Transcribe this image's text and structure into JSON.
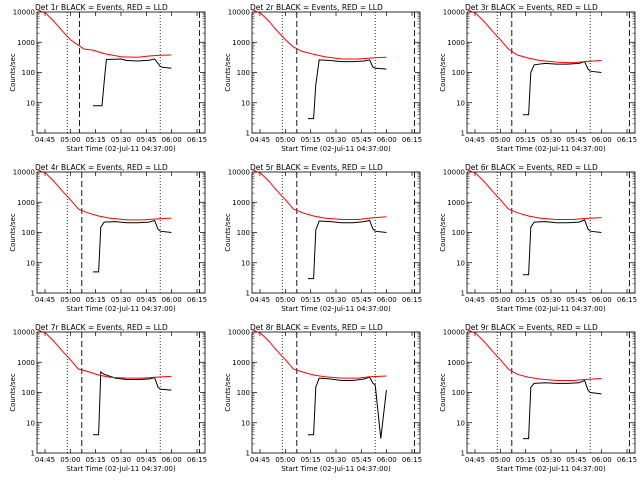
{
  "figure": {
    "background": "#ffffff",
    "layout": "3x3 grid"
  },
  "chart_data": [
    {
      "type": "line",
      "title": "Det 1r BLACK = Events, RED = LLD",
      "xlabel": "Start Time (02-Jul-11 04:37:00)",
      "ylabel": "Counts/sec",
      "xticks": [
        "04:45",
        "05:00",
        "05:15",
        "05:30",
        "05:45",
        "06:00",
        "06:15"
      ],
      "yticks": [
        "1",
        "10",
        "100",
        "1000",
        "10000"
      ],
      "yscale": "log",
      "ylim": [
        1,
        10000
      ],
      "series": [
        {
          "color": "#000000",
          "x": [
            0.5,
            0.58,
            0.6,
            0.62,
            0.75,
            0.8,
            0.9,
            1.0,
            1.05,
            1.08,
            1.1,
            1.12,
            1.15,
            1.2
          ],
          "y": [
            8,
            8,
            50,
            270,
            280,
            250,
            240,
            255,
            280,
            200,
            160,
            150,
            145,
            140
          ]
        },
        {
          "color": "#ff0000",
          "x": [
            0,
            0.08,
            0.15,
            0.22,
            0.3,
            0.37,
            0.42,
            0.5,
            0.6,
            0.75,
            0.9,
            1.0,
            1.1,
            1.2
          ],
          "y": [
            12000,
            9000,
            5000,
            2500,
            1200,
            800,
            600,
            550,
            420,
            330,
            320,
            350,
            370,
            380
          ]
        }
      ],
      "dotted_lines": [
        0.27,
        1.1
      ],
      "dashed_lines": [
        0.38,
        1.45
      ],
      "x_range": [
        0,
        1.5
      ]
    },
    {
      "type": "line",
      "title": "Det 2r BLACK = Events, RED = LLD",
      "xlabel": "Start Time (02-Jul-11 04:37:00)",
      "ylabel": "Counts/sec",
      "xticks": [
        "04:45",
        "05:00",
        "05:15",
        "05:30",
        "05:45",
        "06:00",
        "06:15"
      ],
      "yticks": [
        "1",
        "10",
        "100",
        "1000",
        "10000"
      ],
      "yscale": "log",
      "ylim": [
        1,
        10000
      ],
      "series": [
        {
          "color": "#000000",
          "x": [
            0.5,
            0.55,
            0.57,
            0.6,
            0.7,
            0.8,
            0.9,
            1.0,
            1.05,
            1.08,
            1.1,
            1.2
          ],
          "y": [
            3,
            3,
            40,
            260,
            250,
            230,
            230,
            240,
            260,
            150,
            140,
            130
          ]
        },
        {
          "color": "#ff0000",
          "x": [
            0,
            0.08,
            0.15,
            0.22,
            0.3,
            0.37,
            0.45,
            0.55,
            0.65,
            0.8,
            0.95,
            1.05,
            1.2
          ],
          "y": [
            12000,
            9000,
            5000,
            2500,
            1200,
            700,
            500,
            400,
            330,
            280,
            280,
            300,
            320
          ]
        }
      ],
      "dotted_lines": [
        0.27,
        1.1
      ],
      "dashed_lines": [
        0.4,
        1.45
      ],
      "x_range": [
        0,
        1.5
      ]
    },
    {
      "type": "line",
      "title": "Det 3r BLACK = Events, RED = LLD",
      "xlabel": "Start Time (02-Jul-11 04:37:00)",
      "ylabel": "Counts/sec",
      "xticks": [
        "04:45",
        "05:00",
        "05:15",
        "05:30",
        "05:45",
        "06:00",
        "06:15"
      ],
      "yticks": [
        "1",
        "10",
        "100",
        "1000",
        "10000"
      ],
      "yscale": "log",
      "ylim": [
        1,
        10000
      ],
      "series": [
        {
          "color": "#000000",
          "x": [
            0.5,
            0.55,
            0.57,
            0.6,
            0.7,
            0.8,
            0.9,
            1.0,
            1.05,
            1.08,
            1.1,
            1.2
          ],
          "y": [
            4,
            4,
            100,
            180,
            200,
            190,
            190,
            200,
            230,
            130,
            110,
            100
          ]
        },
        {
          "color": "#ff0000",
          "x": [
            0,
            0.08,
            0.15,
            0.22,
            0.3,
            0.37,
            0.45,
            0.55,
            0.65,
            0.8,
            0.95,
            1.05,
            1.2
          ],
          "y": [
            12000,
            9000,
            5000,
            2500,
            1200,
            600,
            380,
            300,
            250,
            220,
            210,
            230,
            250
          ]
        }
      ],
      "dotted_lines": [
        0.27,
        1.1
      ],
      "dashed_lines": [
        0.4,
        1.45
      ],
      "x_range": [
        0,
        1.5
      ]
    },
    {
      "type": "line",
      "title": "Det 4r BLACK = Events, RED = LLD",
      "xlabel": "Start Time (02-Jul-11 04:37:00)",
      "ylabel": "Counts/sec",
      "xticks": [
        "04:45",
        "05:00",
        "05:15",
        "05:30",
        "05:45",
        "06:00",
        "06:15"
      ],
      "yticks": [
        "1",
        "10",
        "100",
        "1000",
        "10000"
      ],
      "yscale": "log",
      "ylim": [
        1,
        10000
      ],
      "series": [
        {
          "color": "#000000",
          "x": [
            0.5,
            0.55,
            0.57,
            0.6,
            0.7,
            0.8,
            0.9,
            1.0,
            1.05,
            1.08,
            1.1,
            1.2
          ],
          "y": [
            5,
            5,
            150,
            220,
            230,
            210,
            210,
            220,
            250,
            130,
            110,
            100
          ]
        },
        {
          "color": "#ff0000",
          "x": [
            0,
            0.08,
            0.15,
            0.22,
            0.3,
            0.37,
            0.45,
            0.55,
            0.65,
            0.8,
            0.95,
            1.05,
            1.2
          ],
          "y": [
            12000,
            9000,
            5000,
            2500,
            1200,
            600,
            450,
            350,
            300,
            260,
            260,
            280,
            300
          ]
        }
      ],
      "dotted_lines": [
        0.27,
        1.1
      ],
      "dashed_lines": [
        0.4,
        1.45
      ],
      "x_range": [
        0,
        1.5
      ]
    },
    {
      "type": "line",
      "title": "Det 5r BLACK = Events, RED = LLD",
      "xlabel": "Start Time (02-Jul-11 04:37:00)",
      "ylabel": "Counts/sec",
      "xticks": [
        "04:45",
        "05:00",
        "05:15",
        "05:30",
        "05:45",
        "06:00",
        "06:15"
      ],
      "yticks": [
        "1",
        "10",
        "100",
        "1000",
        "10000"
      ],
      "yscale": "log",
      "ylim": [
        1,
        10000
      ],
      "series": [
        {
          "color": "#000000",
          "x": [
            0.5,
            0.55,
            0.57,
            0.6,
            0.7,
            0.8,
            0.9,
            1.0,
            1.05,
            1.08,
            1.1,
            1.2
          ],
          "y": [
            3,
            3,
            120,
            240,
            230,
            210,
            210,
            230,
            250,
            130,
            110,
            100
          ]
        },
        {
          "color": "#ff0000",
          "x": [
            0,
            0.08,
            0.15,
            0.22,
            0.3,
            0.37,
            0.45,
            0.55,
            0.65,
            0.8,
            0.95,
            1.05,
            1.2
          ],
          "y": [
            12000,
            9000,
            5000,
            2500,
            1200,
            600,
            450,
            350,
            300,
            270,
            270,
            300,
            330
          ]
        }
      ],
      "dotted_lines": [
        0.27,
        1.1
      ],
      "dashed_lines": [
        0.4,
        1.45
      ],
      "x_range": [
        0,
        1.5
      ]
    },
    {
      "type": "line",
      "title": "Det 6r BLACK = Events, RED = LLD",
      "xlabel": "Start Time (02-Jul-11 04:37:00)",
      "ylabel": "Counts/sec",
      "xticks": [
        "04:45",
        "05:00",
        "05:15",
        "05:30",
        "05:45",
        "06:00",
        "06:15"
      ],
      "yticks": [
        "1",
        "10",
        "100",
        "1000",
        "10000"
      ],
      "yscale": "log",
      "ylim": [
        1,
        10000
      ],
      "series": [
        {
          "color": "#000000",
          "x": [
            0.5,
            0.55,
            0.57,
            0.6,
            0.7,
            0.8,
            0.9,
            1.0,
            1.05,
            1.08,
            1.1,
            1.2
          ],
          "y": [
            4,
            4,
            150,
            220,
            230,
            210,
            210,
            220,
            260,
            130,
            110,
            100
          ]
        },
        {
          "color": "#ff0000",
          "x": [
            0,
            0.08,
            0.15,
            0.22,
            0.3,
            0.37,
            0.45,
            0.55,
            0.65,
            0.8,
            0.95,
            1.05,
            1.2
          ],
          "y": [
            12000,
            9000,
            5000,
            2500,
            1200,
            600,
            450,
            350,
            300,
            270,
            270,
            290,
            310
          ]
        }
      ],
      "dotted_lines": [
        0.27,
        1.1
      ],
      "dashed_lines": [
        0.4,
        1.45
      ],
      "x_range": [
        0,
        1.5
      ]
    },
    {
      "type": "line",
      "title": "Det 7r BLACK = Events, RED = LLD",
      "xlabel": "Start Time (02-Jul-11 04:37:00)",
      "ylabel": "Counts/sec",
      "xticks": [
        "04:45",
        "05:00",
        "05:15",
        "05:30",
        "05:45",
        "06:00",
        "06:15"
      ],
      "yticks": [
        "1",
        "10",
        "100",
        "1000",
        "10000"
      ],
      "yscale": "log",
      "ylim": [
        1,
        10000
      ],
      "series": [
        {
          "color": "#000000",
          "x": [
            0.5,
            0.55,
            0.57,
            0.6,
            0.7,
            0.8,
            0.9,
            1.0,
            1.05,
            1.08,
            1.1,
            1.2
          ],
          "y": [
            4,
            4,
            480,
            400,
            300,
            270,
            270,
            280,
            310,
            150,
            130,
            120
          ]
        },
        {
          "color": "#ff0000",
          "x": [
            0,
            0.08,
            0.15,
            0.22,
            0.3,
            0.37,
            0.45,
            0.55,
            0.65,
            0.8,
            0.95,
            1.05,
            1.2
          ],
          "y": [
            12000,
            9000,
            5000,
            2500,
            1200,
            600,
            500,
            380,
            320,
            300,
            300,
            320,
            340
          ]
        }
      ],
      "dotted_lines": [
        0.27,
        1.1
      ],
      "dashed_lines": [
        0.4,
        1.45
      ],
      "x_range": [
        0,
        1.5
      ]
    },
    {
      "type": "line",
      "title": "Det 8r BLACK = Events, RED = LLD",
      "xlabel": "Start Time (02-Jul-11 04:37:00)",
      "ylabel": "Counts/sec",
      "xticks": [
        "04:45",
        "05:00",
        "05:15",
        "05:30",
        "05:45",
        "06:00",
        "06:15"
      ],
      "yticks": [
        "1",
        "10",
        "100",
        "1000",
        "10000"
      ],
      "yscale": "log",
      "ylim": [
        1,
        10000
      ],
      "series": [
        {
          "color": "#000000",
          "x": [
            0.5,
            0.55,
            0.57,
            0.6,
            0.7,
            0.8,
            0.9,
            1.0,
            1.05,
            1.08,
            1.1,
            1.15,
            1.2
          ],
          "y": [
            4,
            4,
            150,
            300,
            280,
            250,
            250,
            280,
            320,
            200,
            180,
            3,
            120
          ]
        },
        {
          "color": "#ff0000",
          "x": [
            0,
            0.08,
            0.15,
            0.22,
            0.3,
            0.37,
            0.45,
            0.55,
            0.65,
            0.8,
            0.95,
            1.05,
            1.2
          ],
          "y": [
            12000,
            9000,
            5000,
            2500,
            1200,
            600,
            480,
            380,
            330,
            300,
            300,
            330,
            350
          ]
        }
      ],
      "dotted_lines": [
        0.27,
        1.1
      ],
      "dashed_lines": [
        0.4,
        1.45
      ],
      "x_range": [
        0,
        1.5
      ]
    },
    {
      "type": "line",
      "title": "Det 9r BLACK = Events, RED = LLD",
      "xlabel": "Start Time (02-Jul-11 04:37:00)",
      "ylabel": "Counts/sec",
      "xticks": [
        "04:45",
        "05:00",
        "05:15",
        "05:30",
        "05:45",
        "06:00",
        "06:15"
      ],
      "yticks": [
        "1",
        "10",
        "100",
        "1000",
        "10000"
      ],
      "yscale": "log",
      "ylim": [
        1,
        10000
      ],
      "series": [
        {
          "color": "#000000",
          "x": [
            0.5,
            0.55,
            0.57,
            0.6,
            0.7,
            0.8,
            0.9,
            1.0,
            1.05,
            1.08,
            1.1,
            1.2
          ],
          "y": [
            3,
            3,
            150,
            200,
            210,
            200,
            200,
            210,
            250,
            120,
            100,
            90
          ]
        },
        {
          "color": "#ff0000",
          "x": [
            0,
            0.08,
            0.15,
            0.22,
            0.3,
            0.37,
            0.45,
            0.55,
            0.65,
            0.8,
            0.95,
            1.05,
            1.2
          ],
          "y": [
            12000,
            9000,
            5000,
            2500,
            1200,
            600,
            400,
            320,
            280,
            250,
            250,
            270,
            290
          ]
        }
      ],
      "dotted_lines": [
        0.27,
        1.1
      ],
      "dashed_lines": [
        0.4,
        1.45
      ],
      "x_range": [
        0,
        1.5
      ]
    }
  ]
}
